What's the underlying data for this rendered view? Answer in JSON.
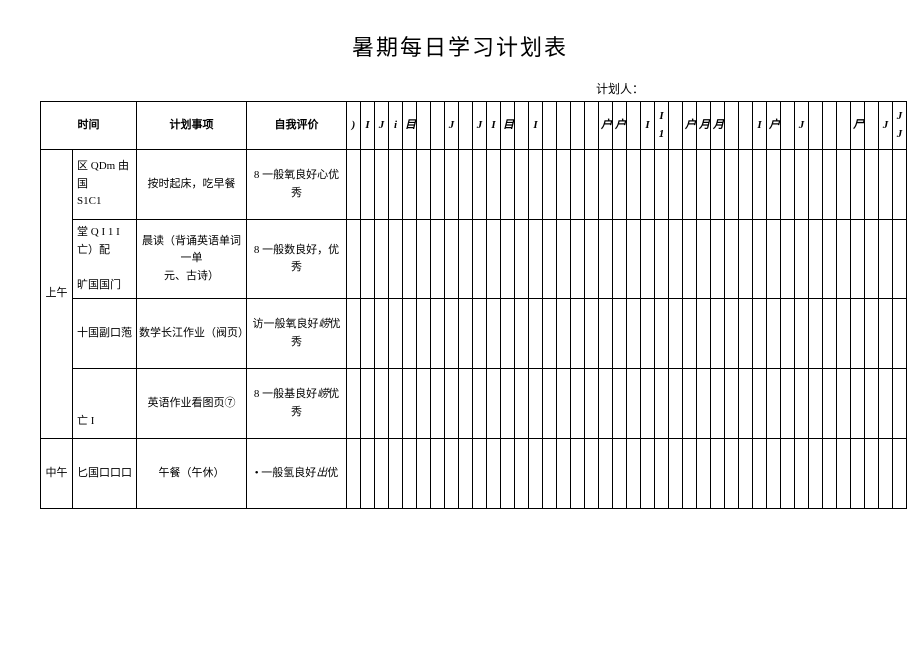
{
  "title": "暑期每日学习计划表",
  "planner_label": "计划人：",
  "headers": {
    "time": "时间",
    "plan": "计划事项",
    "eval": "自我评价",
    "days": [
      ")",
      "I",
      "J",
      "i",
      "目",
      "",
      "",
      "J",
      "",
      "J",
      "I",
      "目",
      "",
      "I",
      "",
      "",
      "",
      "",
      "户",
      "户",
      "",
      "I",
      "I 1",
      "",
      "户",
      "月",
      "月",
      "",
      "",
      "I",
      "户",
      "",
      "J",
      "",
      "",
      "",
      "尸",
      "",
      "J",
      "J J"
    ]
  },
  "sections": [
    {
      "period": "上午",
      "rows": [
        {
          "time_lines": [
            "区 QDm 由国",
            "S1C1"
          ],
          "plan": "按时起床，吃早餐",
          "eval_lines": [
            "8 一般氧良好心优",
            "秀"
          ]
        },
        {
          "time_lines": [
            "堂 Q I 1 I 亡）配",
            "",
            "旷国国门"
          ],
          "plan_lines": [
            "晨读（背诵英语单词一单",
            "元、古诗）"
          ],
          "eval_lines": [
            "8 一般数良好，优",
            "秀"
          ]
        },
        {
          "time_lines": [
            "十国副口萢"
          ],
          "plan": "数学长江作业（阀页）",
          "eval_lines": [
            "访一般氧良好<i>崂</i>优",
            "秀"
          ]
        },
        {
          "time_lines": [
            "",
            "",
            "亡 I"
          ],
          "plan": "英语作业看图页⑦",
          "eval_lines": [
            "8 一般基良好<i>崂</i>优",
            "秀"
          ]
        }
      ]
    },
    {
      "period": "中午",
      "rows": [
        {
          "time_lines": [
            "匕国口口口"
          ],
          "plan": "午餐（午休）",
          "eval_lines": [
            "• 一般氢良好<i>出</i>优"
          ]
        }
      ]
    }
  ]
}
